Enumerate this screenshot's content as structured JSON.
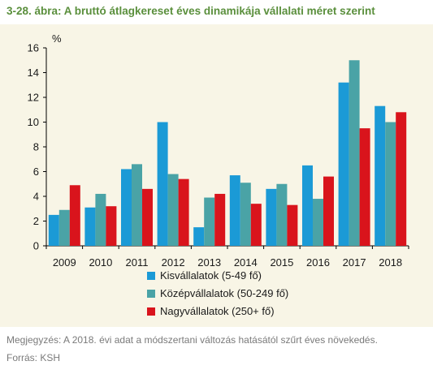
{
  "figure": {
    "title": "3-28. ábra: A bruttó átlagkereset éves dinamikája vállalati méret szerint",
    "note": "Megjegyzés: A 2018. évi adat a módszertani változás hatásától szűrt éves növekedés.",
    "source": "Forrás: KSH"
  },
  "chart_data": {
    "type": "bar",
    "unit_label": "%",
    "categories": [
      "2009",
      "2010",
      "2011",
      "2012",
      "2013",
      "2014",
      "2015",
      "2016",
      "2017",
      "2018"
    ],
    "series": [
      {
        "name": "Kisvállalatok (5-49 fő)",
        "color": "#1b9ad6",
        "values": [
          2.5,
          3.1,
          6.2,
          10.0,
          1.5,
          5.7,
          4.6,
          6.5,
          13.2,
          11.3
        ]
      },
      {
        "name": "Középvállalatok (50-249 fő)",
        "color": "#4aa3a6",
        "values": [
          2.9,
          4.2,
          6.6,
          5.8,
          3.9,
          5.1,
          5.0,
          3.8,
          15.0,
          10.0
        ]
      },
      {
        "name": "Nagyvállalatok (250+ fő)",
        "color": "#d9141c",
        "values": [
          4.9,
          3.2,
          4.6,
          5.4,
          4.2,
          3.4,
          3.3,
          5.6,
          9.5,
          10.8
        ]
      }
    ],
    "ylim": [
      0,
      16
    ],
    "yticks": [
      0,
      2,
      4,
      6,
      8,
      10,
      12,
      14,
      16
    ],
    "grid": false,
    "legend_position": "bottom-center"
  }
}
